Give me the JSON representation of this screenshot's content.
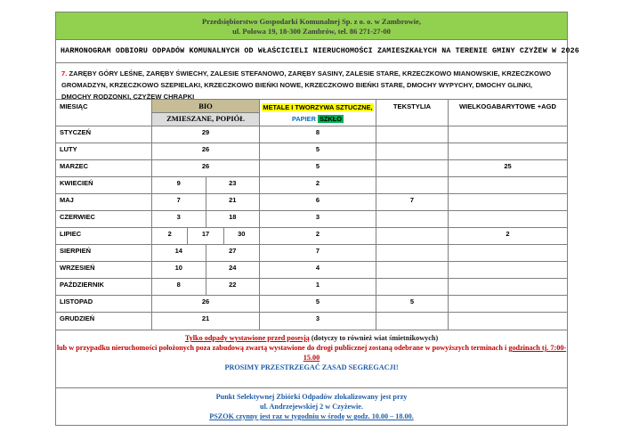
{
  "banner": {
    "line1": "Przedsiębiorstwo Gospodarki Komunalnej Sp. z o. o. w Zambrowie,",
    "line2": "ul. Polowa 19, 18-300 Zambrów, tel. 86 271-27-00"
  },
  "title": "HARMONOGRAM ODBIORU ODPADÓW KOMUNALNYCH OD WŁAŚCICIELI NIERUCHOMOŚCI ZAMIESZKAŁYCH NA TERENIE GMINY CZYŻEW W 2026",
  "region": {
    "number": "7.",
    "localities": " ZARĘBY GÓRY LEŚNE, ZARĘBY ŚWIECHY, ZALESIE STEFANOWO, ZARĘBY SASINY, ZALESIE STARE, KRZECZKOWO MIANOWSKIE, KRZECZKOWO GROMADZYN, KRZECZKOWO SZEPIELAKI, KRZECZKOWO BIEŃKI NOWE, KRZECZKOWO BIEŃKI STARE, DMOCHY WYPYCHY, DMOCHY GLINKI, DMOCHY RODZONKI, CZYŻEW CHRAPKI"
  },
  "table": {
    "headers": {
      "month": "MIESIĄC",
      "bio": "BIO",
      "bio_sub": "ZMIESZANE, POPIÓŁ",
      "metale_line1": "METALE I TWORZYWA SZTUCZNE,",
      "papier": "PAPIER",
      "szklo": "SZKŁO",
      "tekstylia": "TEKSTYLIA",
      "wielkogabarytowe": "WIELKOGABARYTOWE +AGD"
    },
    "rows": [
      {
        "month": "STYCZEŃ",
        "bio": [
          "29"
        ],
        "metale": "8",
        "tekstylia": "",
        "wielko": ""
      },
      {
        "month": "LUTY",
        "bio": [
          "26"
        ],
        "metale": "5",
        "tekstylia": "",
        "wielko": ""
      },
      {
        "month": "MARZEC",
        "bio": [
          "26"
        ],
        "metale": "5",
        "tekstylia": "",
        "wielko": "25"
      },
      {
        "month": "KWIECIEŃ",
        "bio": [
          "9",
          "23"
        ],
        "metale": "2",
        "tekstylia": "",
        "wielko": ""
      },
      {
        "month": "MAJ",
        "bio": [
          "7",
          "21"
        ],
        "metale": "6",
        "tekstylia": "7",
        "wielko": ""
      },
      {
        "month": "CZERWIEC",
        "bio": [
          "3",
          "18"
        ],
        "metale": "3",
        "tekstylia": "",
        "wielko": ""
      },
      {
        "month": "LIPIEC",
        "bio": [
          "2",
          "17",
          "30"
        ],
        "metale": "2",
        "tekstylia": "",
        "wielko": "2"
      },
      {
        "month": "SIERPIEŃ",
        "bio": [
          "14",
          "27"
        ],
        "metale": "7",
        "tekstylia": "",
        "wielko": ""
      },
      {
        "month": "WRZESIEŃ",
        "bio": [
          "10",
          "24"
        ],
        "metale": "4",
        "tekstylia": "",
        "wielko": ""
      },
      {
        "month": "PAŹDZIERNIK",
        "bio": [
          "8",
          "22"
        ],
        "metale": "1",
        "tekstylia": "",
        "wielko": ""
      },
      {
        "month": "LISTOPAD",
        "bio": [
          "26"
        ],
        "metale": "5",
        "tekstylia": "5",
        "wielko": ""
      },
      {
        "month": "GRUDZIEŃ",
        "bio": [
          "21"
        ],
        "metale": "3",
        "tekstylia": "",
        "wielko": ""
      }
    ]
  },
  "notes": {
    "line1_red_underlined": "Tylko odpady wystawione przed posesją",
    "line1_black": " (dotyczy to również wiat śmietnikowych)",
    "line2_red": "lub w przypadku nieruchomości położonych poza zabudową zwartą wystawione do drogi publicznej zostaną odebrane w powyższych terminach i ",
    "line2_red_underlined": "godzinach tj. 7:00-",
    "line3_red_underlined": "15.00",
    "line4_blue": "PROSIMY PRZESTRZEGAĆ ZASAD SEGREGACJI!"
  },
  "pszok": {
    "line1": "Punkt Selektywnej Zbiórki Odpadów zlokalizowany jest przy",
    "line2": "ul. Andrzejewskiej 2 w Czyżewie.",
    "line3": "PSZOK czynny jest raz w tygodniu w środę w godz. 10.00 – 18.00."
  },
  "colors": {
    "banner_green": "#92d050",
    "bio_tan": "#c6bd97",
    "zmieszane_gray": "#dcdcdc",
    "highlight_yellow": "#ffff00",
    "highlight_green": "#00b050",
    "papier_blue": "#0070c0",
    "notes_red": "#c00000",
    "region_red": "#ff0000",
    "info_blue": "#1f5ca8",
    "border_gray": "#7f7f7f"
  }
}
